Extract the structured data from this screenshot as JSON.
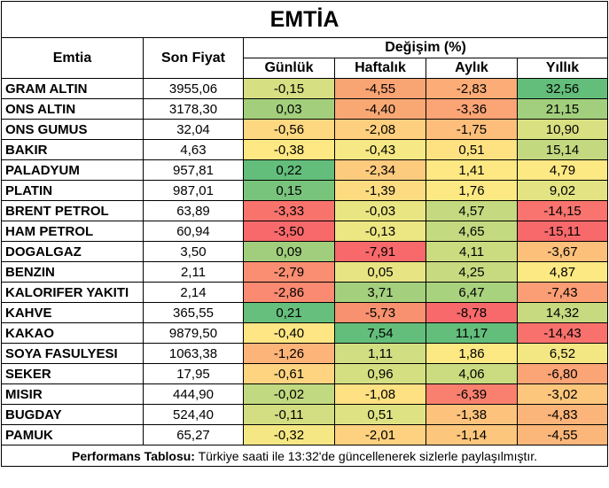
{
  "title": "EMTİA",
  "headers": {
    "commodity": "Emtia",
    "last_price": "Son Fiyat",
    "change_group": "Değişim (%)",
    "daily": "Günlük",
    "weekly": "Haftalık",
    "monthly": "Aylık",
    "yearly": "Yıllık"
  },
  "rows": [
    {
      "name": "GRAM ALTIN",
      "price": "3955,06",
      "daily": {
        "v": "-0,15",
        "c": "#d6df82"
      },
      "weekly": {
        "v": "-4,55",
        "c": "#f8a473"
      },
      "monthly": {
        "v": "-2,83",
        "c": "#fbac77"
      },
      "yearly": {
        "v": "32,56",
        "c": "#63be7b"
      }
    },
    {
      "name": "ONS ALTIN",
      "price": "3178,30",
      "daily": {
        "v": "0,03",
        "c": "#a3cf7d"
      },
      "weekly": {
        "v": "-4,40",
        "c": "#f9a874"
      },
      "monthly": {
        "v": "-3,36",
        "c": "#fba476"
      },
      "yearly": {
        "v": "21,15",
        "c": "#a2cf7d"
      }
    },
    {
      "name": "ONS GUMUS",
      "price": "32,04",
      "daily": {
        "v": "-0,56",
        "c": "#fed881"
      },
      "weekly": {
        "v": "-2,08",
        "c": "#fdcf7e"
      },
      "monthly": {
        "v": "-1,75",
        "c": "#fdbe7b"
      },
      "yearly": {
        "v": "10,90",
        "c": "#d9e082"
      }
    },
    {
      "name": "BAKIR",
      "price": "4,63",
      "daily": {
        "v": "-0,38",
        "c": "#fde883"
      },
      "weekly": {
        "v": "-0,43",
        "c": "#f6e884"
      },
      "monthly": {
        "v": "0,51",
        "c": "#fee282"
      },
      "yearly": {
        "v": "15,14",
        "c": "#c2d980"
      }
    },
    {
      "name": "PALADYUM",
      "price": "957,81",
      "daily": {
        "v": "0,22",
        "c": "#63be7b"
      },
      "weekly": {
        "v": "-2,34",
        "c": "#fdcb7d"
      },
      "monthly": {
        "v": "1,41",
        "c": "#fee883"
      },
      "yearly": {
        "v": "4,79",
        "c": "#fce984"
      }
    },
    {
      "name": "PLATIN",
      "price": "987,01",
      "daily": {
        "v": "0,15",
        "c": "#79c47c"
      },
      "weekly": {
        "v": "-1,39",
        "c": "#fddc81"
      },
      "monthly": {
        "v": "1,76",
        "c": "#fde984"
      },
      "yearly": {
        "v": "9,02",
        "c": "#e3e383"
      }
    },
    {
      "name": "BRENT PETROL",
      "price": "63,89",
      "daily": {
        "v": "-3,33",
        "c": "#f9736d"
      },
      "weekly": {
        "v": "-0,03",
        "c": "#e9e583"
      },
      "monthly": {
        "v": "4,57",
        "c": "#c5da80"
      },
      "yearly": {
        "v": "-14,15",
        "c": "#f9746e"
      }
    },
    {
      "name": "HAM PETROL",
      "price": "60,94",
      "daily": {
        "v": "-3,50",
        "c": "#f8696b"
      },
      "weekly": {
        "v": "-0,13",
        "c": "#ece683"
      },
      "monthly": {
        "v": "4,65",
        "c": "#c3da80"
      },
      "yearly": {
        "v": "-15,11",
        "c": "#f8696b"
      }
    },
    {
      "name": "DOGALGAZ",
      "price": "3,50",
      "daily": {
        "v": "0,09",
        "c": "#a0ce7d"
      },
      "weekly": {
        "v": "-7,91",
        "c": "#f8696b"
      },
      "monthly": {
        "v": "4,11",
        "c": "#cadb80"
      },
      "yearly": {
        "v": "-3,67",
        "c": "#fcc07b"
      }
    },
    {
      "name": "BENZIN",
      "price": "2,11",
      "daily": {
        "v": "-2,79",
        "c": "#fa8e72"
      },
      "weekly": {
        "v": "0,05",
        "c": "#e7e483"
      },
      "monthly": {
        "v": "4,25",
        "c": "#c8da80"
      },
      "yearly": {
        "v": "4,87",
        "c": "#fce984"
      }
    },
    {
      "name": "KALORIFER YAKITI",
      "price": "2,14",
      "daily": {
        "v": "-2,86",
        "c": "#fa8a71"
      },
      "weekly": {
        "v": "3,71",
        "c": "#a4d07e"
      },
      "monthly": {
        "v": "6,47",
        "c": "#a9d27f"
      },
      "yearly": {
        "v": "-7,43",
        "c": "#fb9e75"
      }
    },
    {
      "name": "KAHVE",
      "price": "365,55",
      "daily": {
        "v": "0,21",
        "c": "#66bf7c"
      },
      "weekly": {
        "v": "-5,73",
        "c": "#f8916f"
      },
      "monthly": {
        "v": "-8,78",
        "c": "#f8696b"
      },
      "yearly": {
        "v": "14,32",
        "c": "#c7da80"
      }
    },
    {
      "name": "KAKAO",
      "price": "9879,50",
      "daily": {
        "v": "-0,40",
        "c": "#fde683"
      },
      "weekly": {
        "v": "7,54",
        "c": "#63be7b"
      },
      "monthly": {
        "v": "11,17",
        "c": "#63be7b"
      },
      "yearly": {
        "v": "-14,43",
        "c": "#f9716d"
      }
    },
    {
      "name": "SOYA FASULYESI",
      "price": "1063,38",
      "daily": {
        "v": "-1,26",
        "c": "#fdb479"
      },
      "weekly": {
        "v": "1,11",
        "c": "#d1de81"
      },
      "monthly": {
        "v": "1,86",
        "c": "#fde984"
      },
      "yearly": {
        "v": "6,52",
        "c": "#f3e784"
      }
    },
    {
      "name": "SEKER",
      "price": "17,95",
      "daily": {
        "v": "-0,61",
        "c": "#fed480"
      },
      "weekly": {
        "v": "0,96",
        "c": "#d4df82"
      },
      "monthly": {
        "v": "4,06",
        "c": "#cadb80"
      },
      "yearly": {
        "v": "-6,80",
        "c": "#fba476"
      }
    },
    {
      "name": "MISIR",
      "price": "444,90",
      "daily": {
        "v": "-0,02",
        "c": "#c1d980"
      },
      "weekly": {
        "v": "-1,08",
        "c": "#fee182"
      },
      "monthly": {
        "v": "-6,39",
        "c": "#f9806f"
      },
      "yearly": {
        "v": "-3,02",
        "c": "#fcc67d"
      }
    },
    {
      "name": "BUGDAY",
      "price": "524,40",
      "daily": {
        "v": "-0,11",
        "c": "#d2de81"
      },
      "weekly": {
        "v": "0,51",
        "c": "#dfe283"
      },
      "monthly": {
        "v": "-1,38",
        "c": "#fdc37c"
      },
      "yearly": {
        "v": "-4,83",
        "c": "#fbb479"
      }
    },
    {
      "name": "PAMUK",
      "price": "65,27",
      "daily": {
        "v": "-0,32",
        "c": "#f5e884"
      },
      "weekly": {
        "v": "-2,01",
        "c": "#fdd17f"
      },
      "monthly": {
        "v": "-1,14",
        "c": "#fdc67d"
      },
      "yearly": {
        "v": "-4,55",
        "c": "#fbb679"
      }
    }
  ],
  "footer": {
    "label": "Performans Tablosu:",
    "text": " Türkiye saati ile 13:32'de güncellenerek sizlerle paylaşılmıştır."
  }
}
